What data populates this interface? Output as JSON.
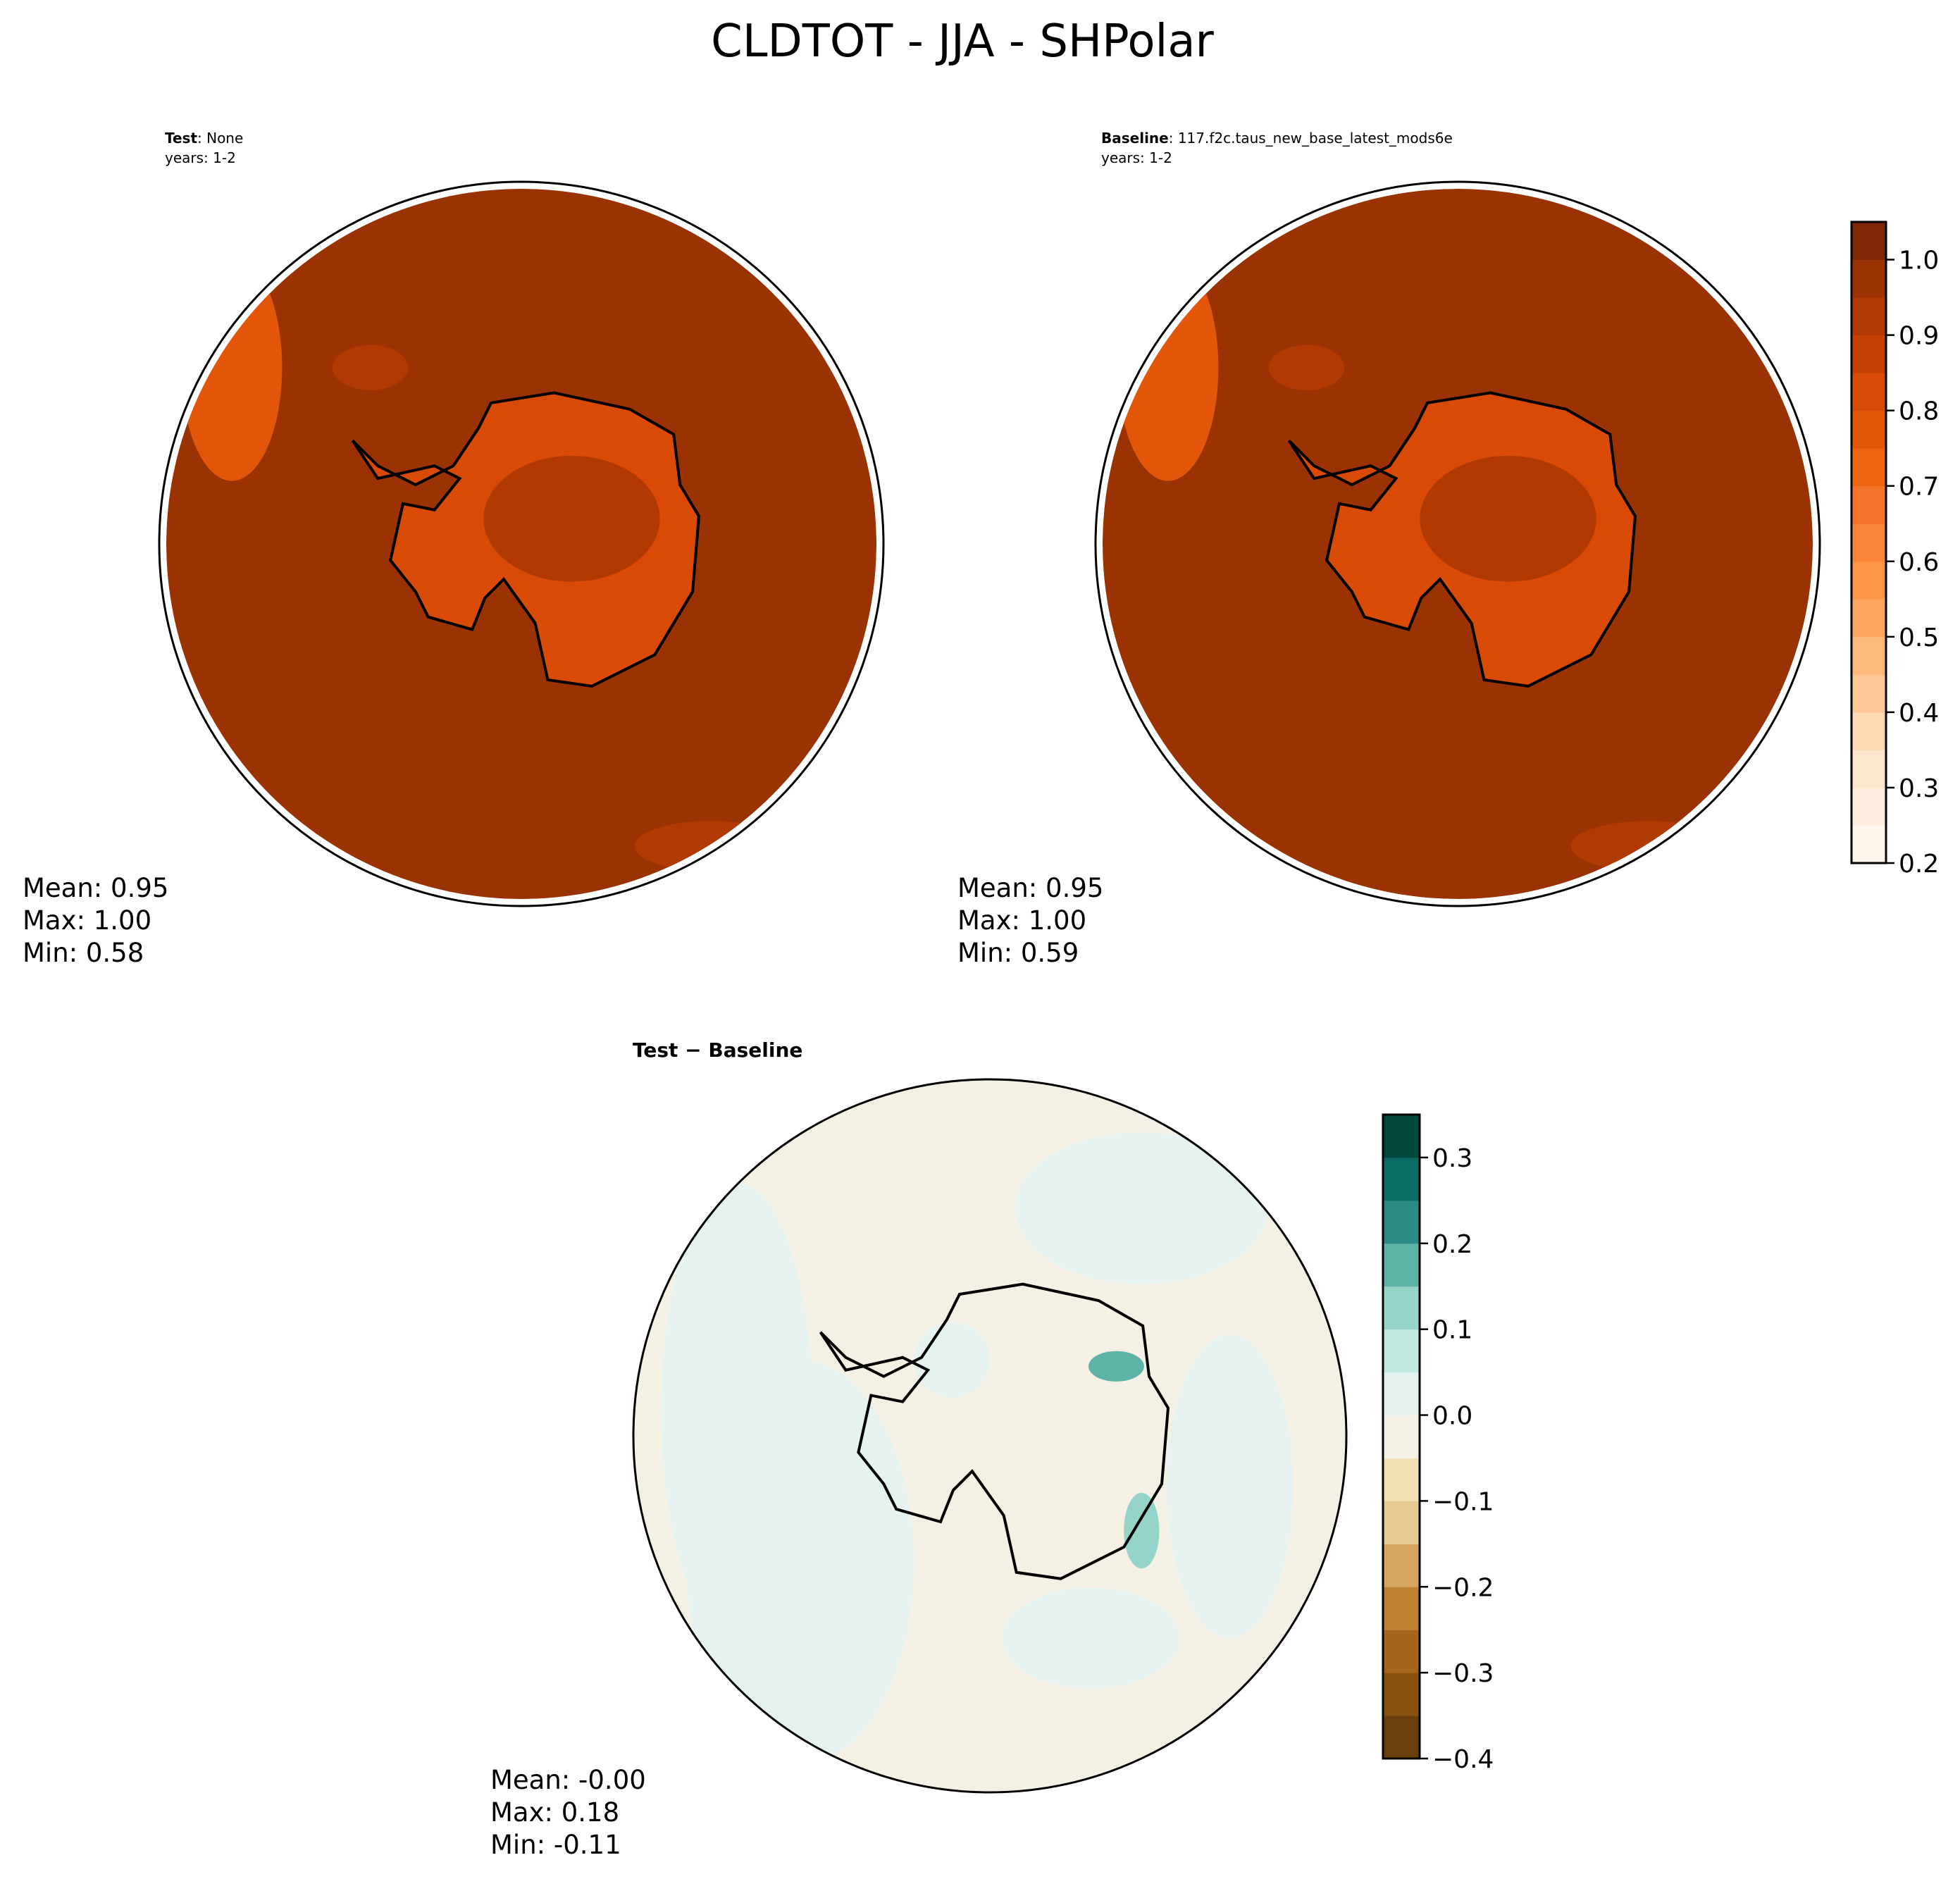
{
  "title": "CLDTOT - JJA - SHPolar",
  "chart_data": [
    {
      "type": "map",
      "label": "Test",
      "name": ": None",
      "years": "years: 1-2",
      "stats": [
        "Mean:  0.95",
        "Max:  1.00",
        "Min:  0.58"
      ],
      "clim": [
        0.2,
        1.05
      ],
      "colors": [
        "#fff5eb",
        "#feeddc",
        "#fee6ce",
        "#fdd9b4",
        "#fdc895",
        "#fdb97d",
        "#fda762",
        "#fd9647",
        "#f8853a",
        "#f4742d",
        "#ee6511",
        "#e35609",
        "#d84a05",
        "#c44103",
        "#b13a03",
        "#9a3203",
        "#7f2704"
      ]
    },
    {
      "type": "map",
      "label": "Baseline",
      "name": ": 117.f2c.taus_new_base_latest_mods6e",
      "years": "years: 1-2",
      "stats": [
        "Mean:  0.95",
        "Max:  1.00",
        "Min:  0.59"
      ],
      "clim": [
        0.2,
        1.05
      ],
      "colors": [
        "#fff5eb",
        "#feeddc",
        "#fee6ce",
        "#fdd9b4",
        "#fdc895",
        "#fdb97d",
        "#fda762",
        "#fd9647",
        "#f8853a",
        "#f4742d",
        "#ee6511",
        "#e35609",
        "#d84a05",
        "#c44103",
        "#b13a03",
        "#9a3203",
        "#7f2704"
      ],
      "yticks": [
        0.2,
        0.3,
        0.4,
        0.5,
        0.6,
        0.7,
        0.8,
        0.9,
        {
          "value": 1,
          "label": "1.0"
        }
      ]
    },
    {
      "type": "map",
      "label": "Test − Baseline",
      "stats": [
        "Mean: -0.00",
        "Max:  0.18",
        "Min: -0.11"
      ],
      "clim": [
        -0.4,
        0.35
      ],
      "colors": [
        "#6b3e0b",
        "#8a500e",
        "#a5661b",
        "#bd8232",
        "#d4a660",
        "#e5cb8f",
        "#f1e0b4",
        "#f5f0e4",
        "#e5f2f0",
        "#c4e8e2",
        "#95d5c9",
        "#5db2a8",
        "#2a8b84",
        "#0a6d64",
        "#01493d"
      ],
      "yticks": [
        {
          "value": -0.4,
          "label": "−0.4"
        },
        {
          "value": -0.3,
          "label": "−0.3"
        },
        {
          "value": -0.2,
          "label": "−0.2"
        },
        {
          "value": -0.1,
          "label": "−0.1"
        },
        {
          "value": 0,
          "label": "0.0"
        },
        0.1,
        0.2,
        0.3
      ]
    }
  ]
}
